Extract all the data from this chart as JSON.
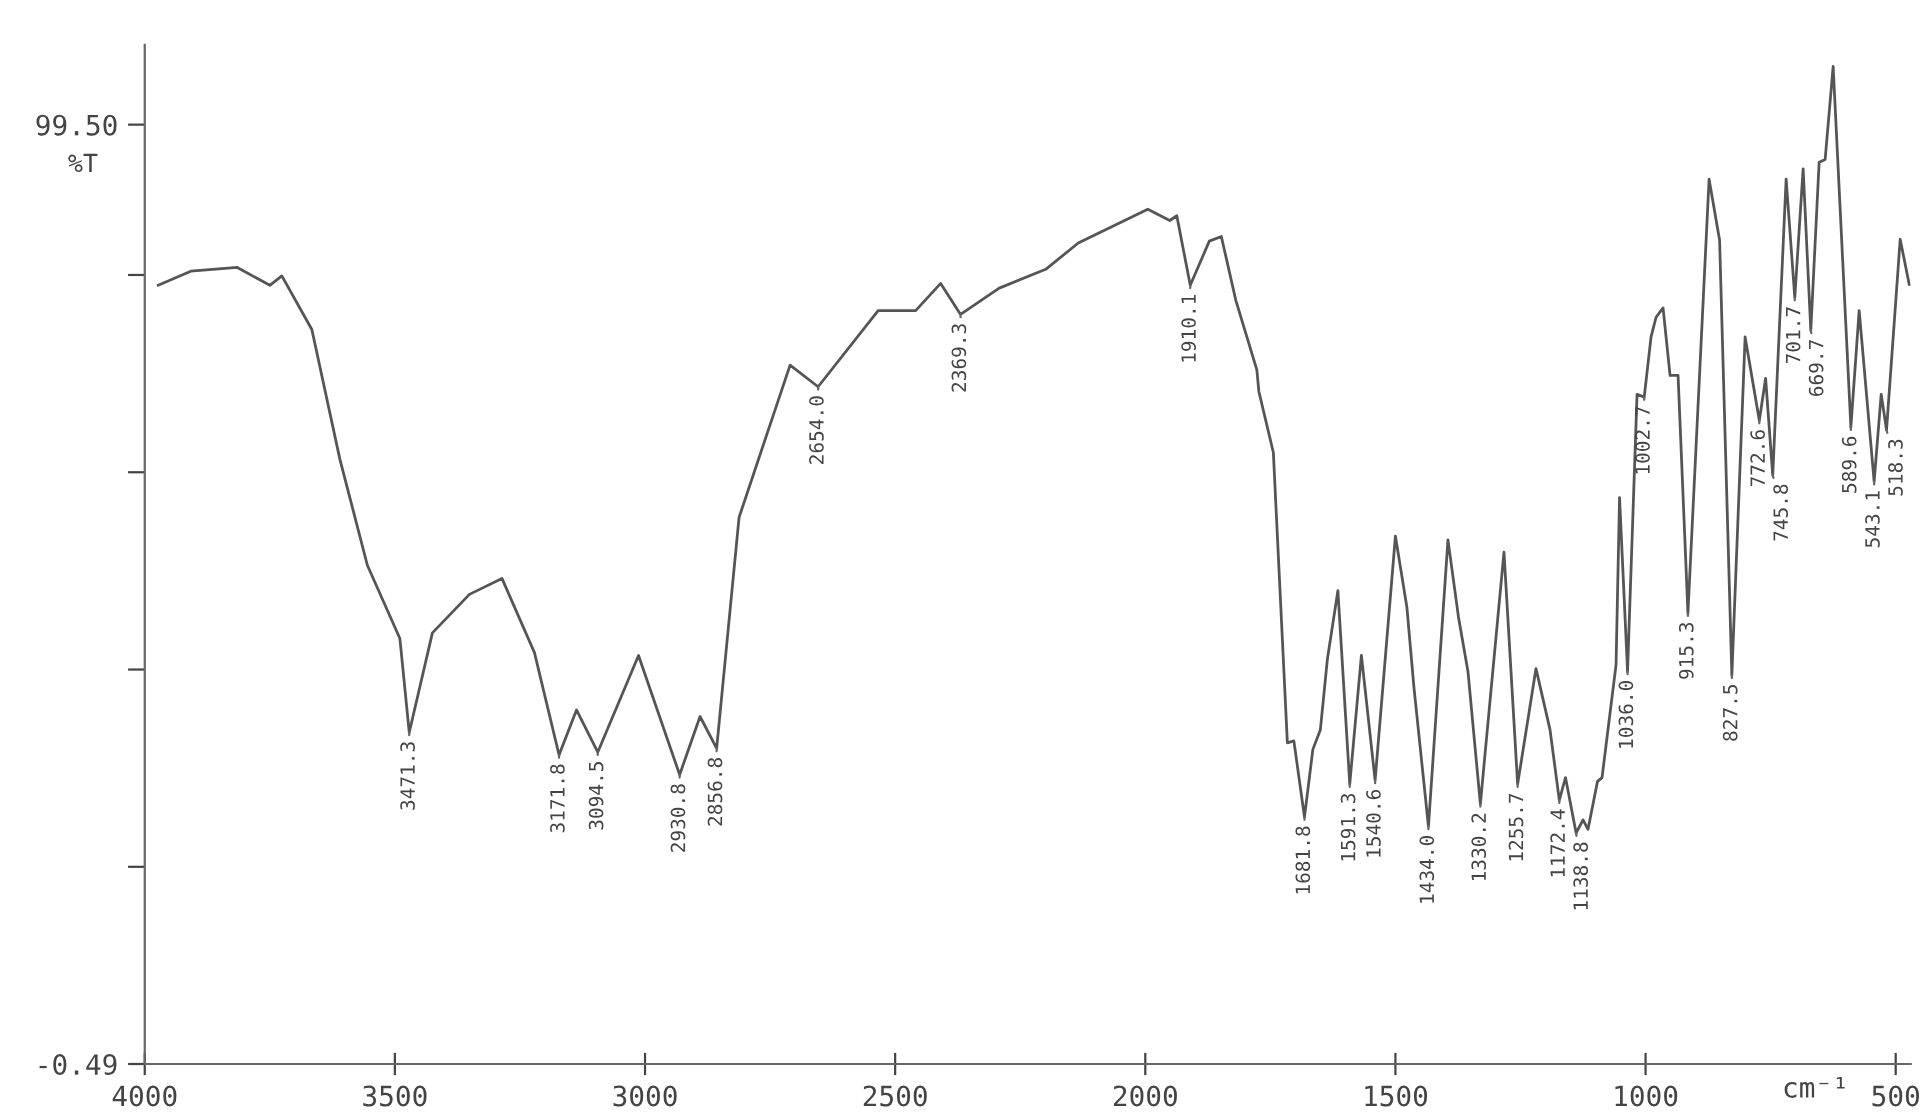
{
  "chart_data": {
    "type": "line",
    "xlabel": "cm⁻¹",
    "ylabel": "%T",
    "xlim": [
      4000,
      470
    ],
    "ylim": [
      -0.49,
      108
    ],
    "xticks": [
      4000,
      3500,
      3000,
      2500,
      2000,
      1500,
      1000,
      500
    ],
    "yticks": [
      {
        "value": 99.5,
        "label": "99.50"
      },
      {
        "value": 83.5,
        "label": null
      },
      {
        "value": 62.5,
        "label": null
      },
      {
        "value": 41.5,
        "label": null
      },
      {
        "value": 20.5,
        "label": null
      },
      {
        "value": -0.49,
        "label": "-0.49"
      }
    ],
    "grid": false,
    "legend": false,
    "marker": "none",
    "line_style": "solid",
    "series": [
      {
        "color": "#555555",
        "x": [
          3973,
          3908,
          3815,
          3750,
          3726,
          3666,
          3610,
          3555,
          3490,
          3471.3,
          3425,
          3351,
          3286,
          3221,
          3171.8,
          3137,
          3094.5,
          3013,
          2930.8,
          2890,
          2856.8,
          2812,
          2710,
          2654.0,
          2534,
          2459,
          2409,
          2369.3,
          2292,
          2199,
          2134,
          1995,
          1951,
          1937,
          1910.1,
          1872,
          1848,
          1819,
          1777,
          1773,
          1744,
          1716,
          1703,
          1681.8,
          1665,
          1650,
          1636,
          1615,
          1591.3,
          1568,
          1540.6,
          1500,
          1477,
          1463,
          1434.0,
          1395,
          1374,
          1355,
          1330.2,
          1283,
          1255.7,
          1219,
          1191,
          1172.4,
          1160,
          1138.8,
          1125,
          1115,
          1096,
          1087,
          1059,
          1052,
          1036.0,
          1017,
          1002.7,
          989,
          979,
          965,
          951,
          935,
          915.3,
          873,
          852,
          827.5,
          801,
          772.6,
          760,
          745.8,
          719,
          701.7,
          685,
          669.7,
          653,
          641,
          625,
          589.6,
          573,
          543.1,
          529,
          518.3,
          491,
          473
        ],
        "values": [
          82.4,
          83.9,
          84.3,
          82.4,
          83.4,
          77.7,
          63.9,
          52.6,
          44.8,
          34.8,
          45.4,
          49.5,
          51.2,
          43.3,
          32.4,
          37.2,
          32.7,
          43.0,
          30.3,
          36.5,
          33.1,
          57.7,
          73.9,
          71.6,
          79.7,
          79.7,
          82.6,
          79.3,
          82.1,
          84.1,
          86.9,
          90.5,
          89.3,
          89.8,
          82.4,
          87.1,
          87.6,
          80.8,
          73.4,
          71.1,
          64.6,
          33.7,
          33.9,
          25.8,
          33.0,
          35.1,
          42.6,
          49.9,
          29.3,
          43.0,
          29.7,
          55.7,
          48.1,
          39.6,
          24.8,
          55.3,
          47.1,
          41.3,
          27.2,
          54.0,
          29.3,
          41.6,
          35.1,
          27.6,
          30.0,
          24.1,
          25.5,
          24.5,
          29.6,
          30.0,
          42.0,
          59.8,
          41.3,
          70.8,
          70.5,
          76.9,
          79.0,
          80.0,
          72.8,
          72.8,
          47.5,
          93.7,
          87.2,
          40.9,
          76.9,
          68.0,
          72.5,
          62.2,
          93.7,
          81.1,
          94.8,
          77.6,
          95.5,
          95.8,
          105.7,
          67.3,
          79.7,
          61.5,
          70.8,
          67.0,
          87.3,
          82.5
        ]
      }
    ],
    "annotations": [
      {
        "text": "3471.3",
        "x": 3471.3,
        "y": 34.8
      },
      {
        "text": "3171.8",
        "x": 3171.8,
        "y": 32.4
      },
      {
        "text": "3094.5",
        "x": 3094.5,
        "y": 32.7
      },
      {
        "text": "2930.8",
        "x": 2930.8,
        "y": 30.3
      },
      {
        "text": "2856.8",
        "x": 2856.8,
        "y": 33.1
      },
      {
        "text": "2654.0",
        "x": 2654.0,
        "y": 71.6
      },
      {
        "text": "2369.3",
        "x": 2369.3,
        "y": 79.3
      },
      {
        "text": "1910.1",
        "x": 1910.1,
        "y": 82.4
      },
      {
        "text": "1681.8",
        "x": 1681.8,
        "y": 25.8
      },
      {
        "text": "1591.3",
        "x": 1591.3,
        "y": 29.3
      },
      {
        "text": "1540.6",
        "x": 1540.6,
        "y": 29.7
      },
      {
        "text": "1434.0",
        "x": 1434.0,
        "y": 24.8
      },
      {
        "text": "1330.2",
        "x": 1330.2,
        "y": 27.2
      },
      {
        "text": "1255.7",
        "x": 1255.7,
        "y": 29.3
      },
      {
        "text": "1172.4",
        "x": 1172.4,
        "y": 27.6
      },
      {
        "text": "1138.8",
        "x": 1138.8,
        "y": 24.1
      },
      {
        "text": "1036.0",
        "x": 1036.0,
        "y": 41.3
      },
      {
        "text": "1002.7",
        "x": 1002.7,
        "y": 70.5
      },
      {
        "text": "915.3",
        "x": 915.3,
        "y": 47.5
      },
      {
        "text": "827.5",
        "x": 827.5,
        "y": 40.9
      },
      {
        "text": "772.6",
        "x": 772.6,
        "y": 68.0
      },
      {
        "text": "745.8",
        "x": 745.8,
        "y": 62.2
      },
      {
        "text": "701.7",
        "x": 701.7,
        "y": 81.1
      },
      {
        "text": "669.7",
        "x": 669.7,
        "y": 77.6
      },
      {
        "text": "589.6",
        "x": 589.6,
        "y": 67.3
      },
      {
        "text": "543.1",
        "x": 543.1,
        "y": 61.5
      },
      {
        "text": "518.3",
        "x": 518.3,
        "y": 67.0
      }
    ]
  }
}
